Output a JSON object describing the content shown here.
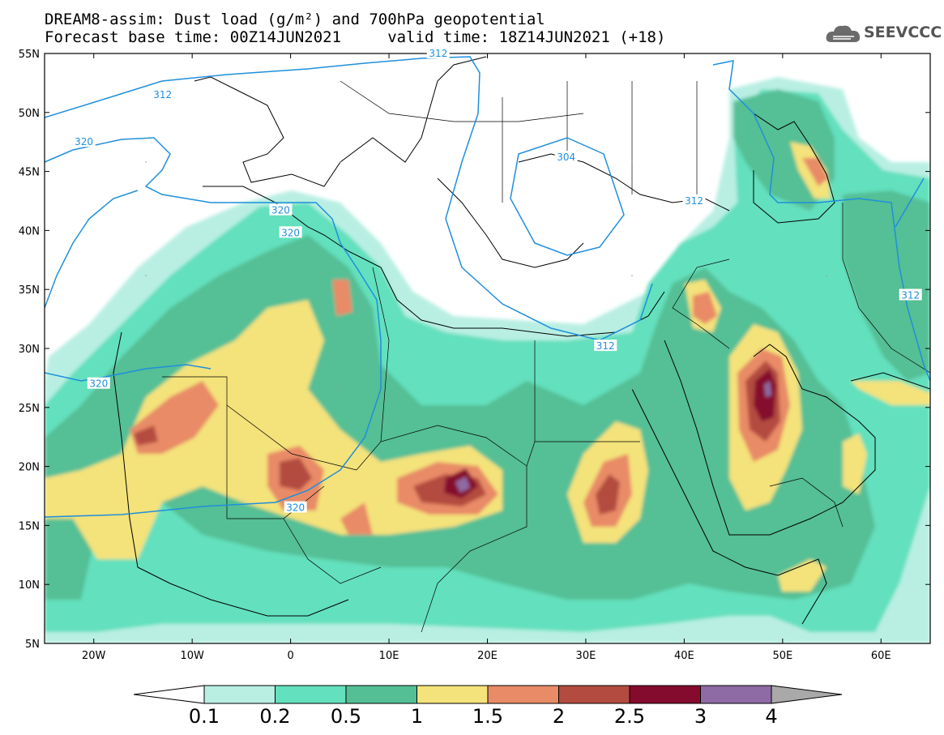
{
  "title_line1": "DREAM8-assim: Dust load (g/m²) and 700hPa geopotential",
  "title_line2": "Forecast base time: 00Z14JUN2021     valid time: 18Z14JUN2021 (+18)",
  "logo_text": "SEEVCCC",
  "logo_icon": "cloud-logo-icon",
  "lat_labels": [
    {
      "value": 55,
      "label": "55N"
    },
    {
      "value": 50,
      "label": "50N"
    },
    {
      "value": 45,
      "label": "45N"
    },
    {
      "value": 40,
      "label": "40N"
    },
    {
      "value": 35,
      "label": "35N"
    },
    {
      "value": 30,
      "label": "30N"
    },
    {
      "value": 25,
      "label": "25N"
    },
    {
      "value": 20,
      "label": "20N"
    },
    {
      "value": 15,
      "label": "15N"
    },
    {
      "value": 10,
      "label": "10N"
    },
    {
      "value": 5,
      "label": "5N"
    }
  ],
  "lon_labels": [
    {
      "value": -20,
      "label": "20W"
    },
    {
      "value": -10,
      "label": "10W"
    },
    {
      "value": 0,
      "label": "0"
    },
    {
      "value": 10,
      "label": "10E"
    },
    {
      "value": 20,
      "label": "20E"
    },
    {
      "value": 30,
      "label": "30E"
    },
    {
      "value": 40,
      "label": "40E"
    },
    {
      "value": 50,
      "label": "50E"
    },
    {
      "value": 60,
      "label": "60E"
    }
  ],
  "extent": {
    "lon_min": -25,
    "lon_max": 65,
    "lat_min": 5,
    "lat_max": 55
  },
  "colorbar": {
    "levels": [
      {
        "label": "0.1",
        "color": "#b9efe3"
      },
      {
        "label": "0.2",
        "color": "#63e0bd"
      },
      {
        "label": "0.5",
        "color": "#54bf95"
      },
      {
        "label": "1",
        "color": "#f4e27a"
      },
      {
        "label": "1.5",
        "color": "#e88b66"
      },
      {
        "label": "2",
        "color": "#b44b40"
      },
      {
        "label": "2.5",
        "color": "#850b2e"
      },
      {
        "label": "3",
        "color": "#8e6ba4"
      },
      {
        "label": "4",
        "color": "#a9a9a9"
      }
    ],
    "low_color": "#ffffff",
    "high_color": "#a9a9a9"
  },
  "contour_color": "#1f8fdc",
  "contour_labels": [
    {
      "label": "312",
      "lon": -13,
      "lat": 51.5
    },
    {
      "label": "312",
      "lon": 15,
      "lat": 55
    },
    {
      "label": "320",
      "lon": -21,
      "lat": 47.5
    },
    {
      "label": "320",
      "lon": -1,
      "lat": 41.7
    },
    {
      "label": "320",
      "lon": 0,
      "lat": 39.8
    },
    {
      "label": "304",
      "lon": 28,
      "lat": 46.2
    },
    {
      "label": "312",
      "lon": 41,
      "lat": 42.5
    },
    {
      "label": "312",
      "lon": 32,
      "lat": 30.2
    },
    {
      "label": "312",
      "lon": 63,
      "lat": 34.5
    },
    {
      "label": "320",
      "lon": -19.5,
      "lat": 27
    },
    {
      "label": "320",
      "lon": 0.5,
      "lat": 16.5
    }
  ]
}
